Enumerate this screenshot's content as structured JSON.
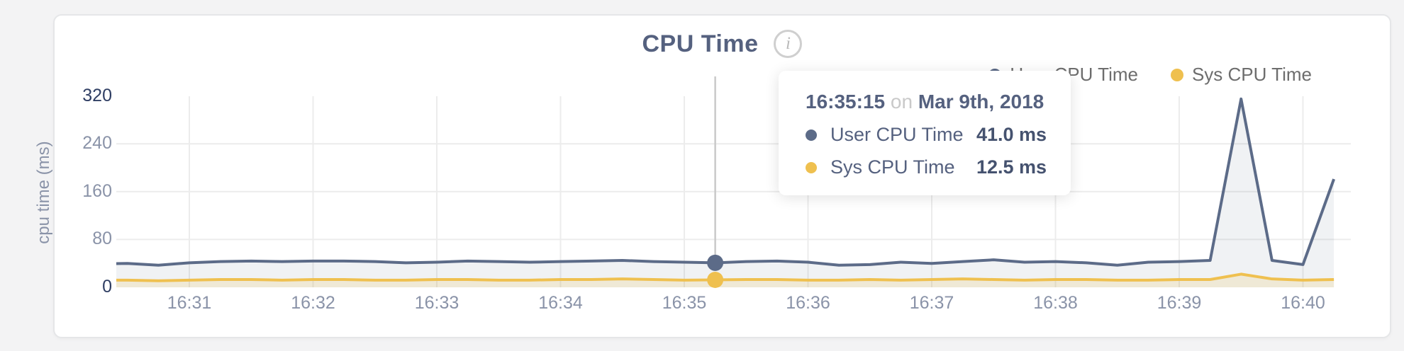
{
  "card": {
    "title": "CPU Time",
    "info_icon": "i"
  },
  "legend": {
    "items": [
      {
        "label": "User CPU Time",
        "color": "#5c6b88"
      },
      {
        "label": "Sys CPU Time",
        "color": "#efc04f"
      }
    ]
  },
  "tooltip": {
    "time": "16:35:15",
    "connector": "on",
    "date": "Mar 9th, 2018",
    "rows": [
      {
        "label": "User CPU Time",
        "value": "41.0 ms",
        "color": "#5c6b88"
      },
      {
        "label": "Sys CPU Time",
        "value": "12.5 ms",
        "color": "#efc04f"
      }
    ]
  },
  "chart_data": {
    "type": "area",
    "title": "CPU Time",
    "xlabel": "",
    "ylabel": "cpu time (ms)",
    "ylim": [
      0,
      320
    ],
    "grid": true,
    "legend_position": "top-right",
    "yticks": [
      0,
      80,
      160,
      240,
      320
    ],
    "xticks": [
      "16:31",
      "16:32",
      "16:33",
      "16:34",
      "16:35",
      "16:36",
      "16:37",
      "16:38",
      "16:39",
      "16:40"
    ],
    "x_times": [
      "16:30:15",
      "16:30:30",
      "16:30:45",
      "16:31:00",
      "16:31:15",
      "16:31:30",
      "16:31:45",
      "16:32:00",
      "16:32:15",
      "16:32:30",
      "16:32:45",
      "16:33:00",
      "16:33:15",
      "16:33:30",
      "16:33:45",
      "16:34:00",
      "16:34:15",
      "16:34:30",
      "16:34:45",
      "16:35:00",
      "16:35:15",
      "16:35:30",
      "16:35:45",
      "16:36:00",
      "16:36:15",
      "16:36:30",
      "16:36:45",
      "16:37:00",
      "16:37:15",
      "16:37:30",
      "16:37:45",
      "16:38:00",
      "16:38:15",
      "16:38:30",
      "16:38:45",
      "16:39:00",
      "16:39:15",
      "16:39:30",
      "16:39:45",
      "16:40:00",
      "16:40:15"
    ],
    "series": [
      {
        "name": "User CPU Time",
        "color": "#5c6b88",
        "fill": "rgba(92,107,136,0.09)",
        "unit": "ms",
        "values": [
          39,
          40,
          37,
          41,
          43,
          44,
          43,
          44,
          44,
          43,
          41,
          42,
          44,
          43,
          42,
          43,
          44,
          45,
          43,
          42,
          41,
          43,
          44,
          42,
          37,
          38,
          42,
          40,
          43,
          46,
          42,
          43,
          41,
          37,
          42,
          43,
          45,
          315,
          45,
          38,
          181
        ]
      },
      {
        "name": "Sys CPU Time",
        "color": "#efc04f",
        "fill": "rgba(239,192,79,0.18)",
        "unit": "ms",
        "values": [
          12,
          12,
          11,
          12,
          13,
          13,
          12,
          13,
          13,
          12,
          12,
          13,
          13,
          12,
          12,
          13,
          13,
          14,
          13,
          12,
          12.5,
          13,
          13,
          12,
          12,
          13,
          12,
          13,
          14,
          13,
          12,
          13,
          13,
          12,
          12,
          13,
          13,
          22,
          14,
          12,
          13
        ]
      }
    ],
    "hover": {
      "time": "16:35:15",
      "date": "Mar 9th, 2018",
      "index": 20,
      "user_ms": 41.0,
      "sys_ms": 12.5
    }
  }
}
